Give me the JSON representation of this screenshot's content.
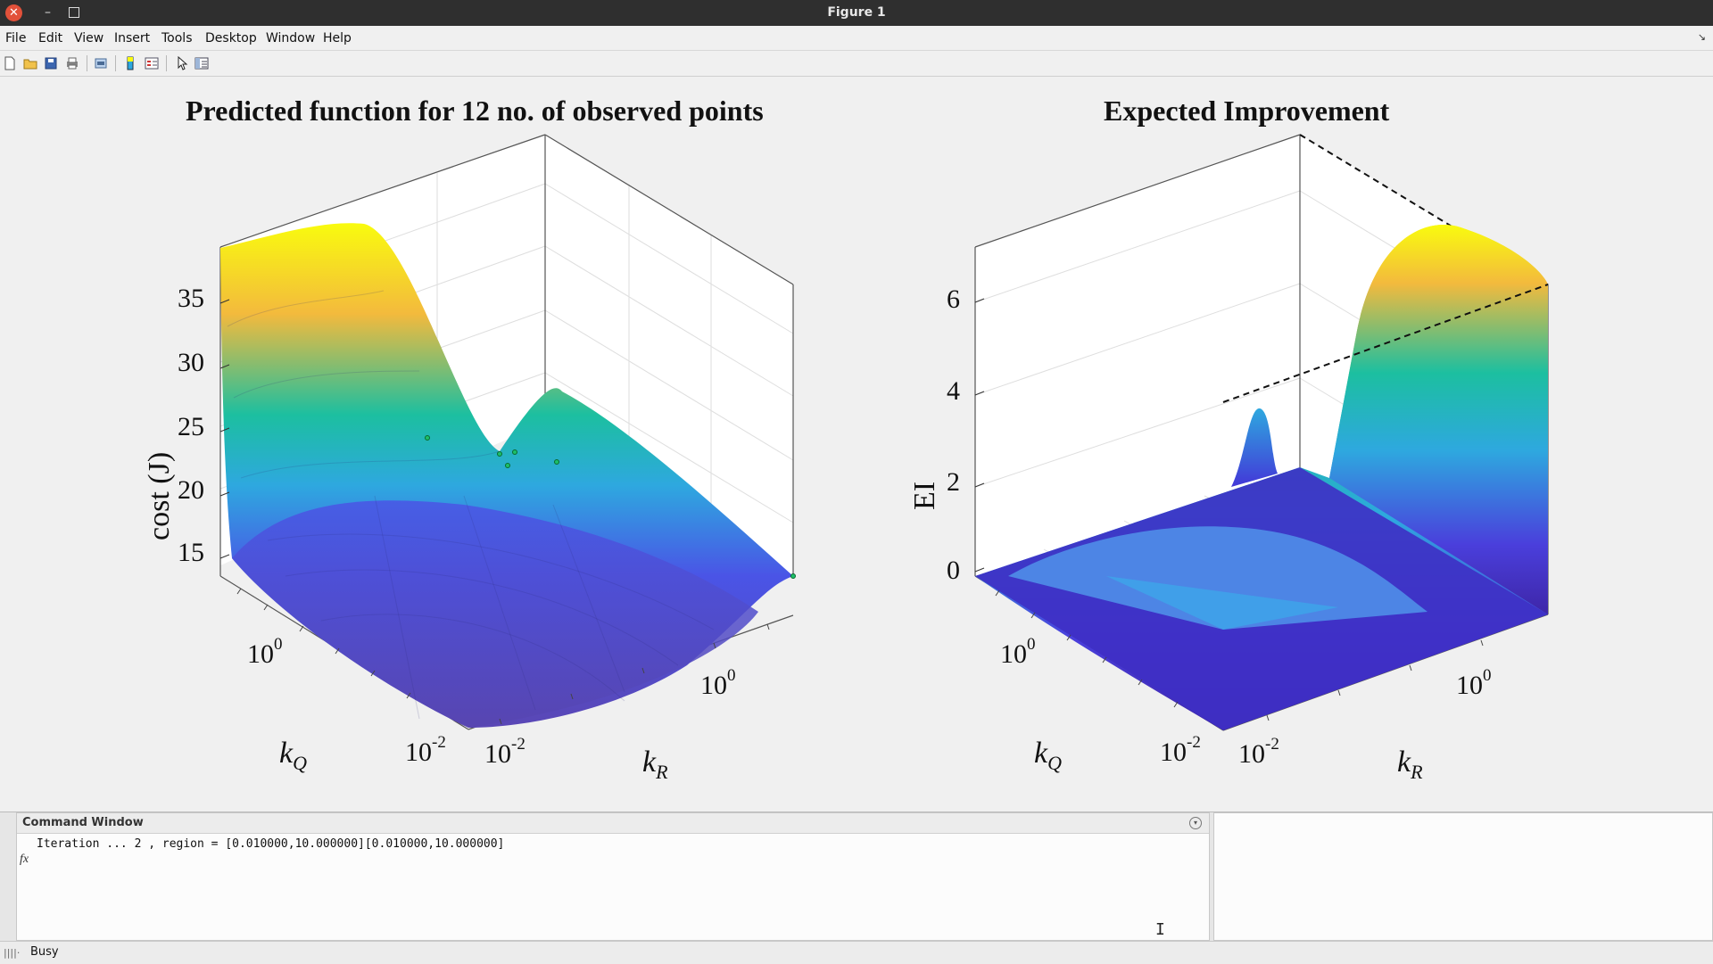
{
  "window": {
    "title": "Figure 1"
  },
  "menu": [
    "File",
    "Edit",
    "View",
    "Insert",
    "Tools",
    "Desktop",
    "Window",
    "Help"
  ],
  "toolbar_icons": [
    "new-figure-icon",
    "open-file-icon",
    "save-icon",
    "print-icon",
    "print-preview-icon",
    "insert-colorbar-icon",
    "insert-legend-icon",
    "select-arrow-icon",
    "property-inspector-icon"
  ],
  "plots": {
    "left": {
      "title": "Predicted function for  12 no. of observed points",
      "zlabel": "cost (J)",
      "zticks": [
        "35",
        "30",
        "25",
        "20",
        "15"
      ],
      "xlabel": "k",
      "xlabel_sub": "Q",
      "ylabel": "k",
      "ylabel_sub": "R",
      "kq_ticks": [
        {
          "base": "10",
          "exp": "0"
        },
        {
          "base": "10",
          "exp": "-2"
        }
      ],
      "kr_ticks": [
        {
          "base": "10",
          "exp": "-2"
        },
        {
          "base": "10",
          "exp": "0"
        }
      ]
    },
    "right": {
      "title": "Expected Improvement",
      "zlabel": "EI",
      "zticks": [
        "6",
        "4",
        "2",
        "0"
      ],
      "xlabel": "k",
      "xlabel_sub": "Q",
      "ylabel": "k",
      "ylabel_sub": "R",
      "kq_ticks": [
        {
          "base": "10",
          "exp": "0"
        },
        {
          "base": "10",
          "exp": "-2"
        }
      ],
      "kr_ticks": [
        {
          "base": "10",
          "exp": "-2"
        },
        {
          "base": "10",
          "exp": "0"
        }
      ]
    }
  },
  "command_window": {
    "title": "Command Window",
    "line": "Iteration ... 2 , region = [0.010000,10.000000][0.010000,10.000000]",
    "prompt": "fx"
  },
  "status": {
    "text": "Busy"
  },
  "colors": {
    "parula_low": "#3e26a8",
    "parula_mid": "#2ea8df",
    "parula_green": "#1cbfa0",
    "parula_high": "#f9fb0e"
  }
}
